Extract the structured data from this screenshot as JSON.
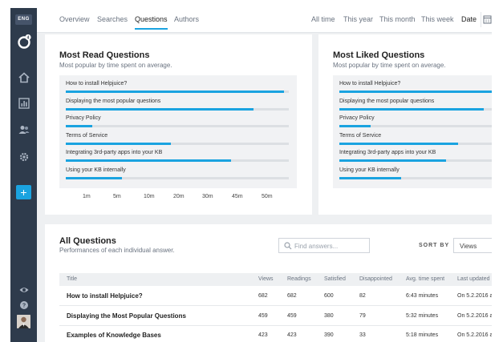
{
  "sidebar": {
    "lang": "ENG",
    "logo_badge": "4",
    "nav": [
      "home-icon",
      "bar-chart-icon",
      "users-icon",
      "gear-icon"
    ],
    "add_label": "+",
    "bottom": [
      "eye-icon",
      "help-icon"
    ]
  },
  "tabs": [
    "Overview",
    "Searches",
    "Questions",
    "Authors"
  ],
  "active_tab": "Questions",
  "time_filters": [
    "All time",
    "This year",
    "This month",
    "This week",
    "Date"
  ],
  "most_read": {
    "title": "Most Read Questions",
    "subtitle": "Most popular by time spent on average.",
    "items": [
      {
        "label": "How to install Helpjuice?",
        "value": 0.98
      },
      {
        "label": "Displaying the most popular questions",
        "value": 0.84
      },
      {
        "label": "Privacy Policy",
        "value": 0.12
      },
      {
        "label": "Terms of Service",
        "value": 0.47
      },
      {
        "label": "Integrating 3rd-party apps into your KB",
        "value": 0.74
      },
      {
        "label": "Using your KB internally",
        "value": 0.25
      }
    ],
    "ticks": [
      "1m",
      "5m",
      "10m",
      "20m",
      "30m",
      "45m",
      "50m"
    ]
  },
  "most_liked": {
    "title": "Most Liked Questions",
    "subtitle": "Most popular by time spent on average.",
    "items": [
      {
        "label": "How to install Helpjuice?",
        "value": 1.0
      },
      {
        "label": "Displaying the most popular questions",
        "value": 0.84
      },
      {
        "label": "Privacy Policy",
        "value": 0.18
      },
      {
        "label": "Terms of Service",
        "value": 0.69
      },
      {
        "label": "Integrating 3rd-party apps into your KB",
        "value": 0.62
      },
      {
        "label": "Using your KB internally",
        "value": 0.36
      }
    ]
  },
  "all_questions": {
    "title": "All Questions",
    "subtitle": "Performances of each individual answer.",
    "search_placeholder": "Find answers...",
    "sort_label": "SORT BY",
    "sort_value": "Views",
    "columns": [
      "Title",
      "Views",
      "Readings",
      "Satisfied",
      "Disappointed",
      "Avg. time spent",
      "Last updated"
    ],
    "rows": [
      [
        "How to install Helpjuice?",
        "682",
        "682",
        "600",
        "82",
        "6:43 minutes",
        "On 5.2.2016 a"
      ],
      [
        "Displaying the Most Popular Questions",
        "459",
        "459",
        "380",
        "79",
        "5:32 minutes",
        "On 5.2.2016 a"
      ],
      [
        "Examples of Knowledge Bases",
        "423",
        "423",
        "390",
        "33",
        "5:18 minutes",
        "On 5.2.2016 a"
      ]
    ]
  },
  "colors": {
    "accent": "#1aa3e0",
    "sidebar": "#2e3b4c"
  }
}
